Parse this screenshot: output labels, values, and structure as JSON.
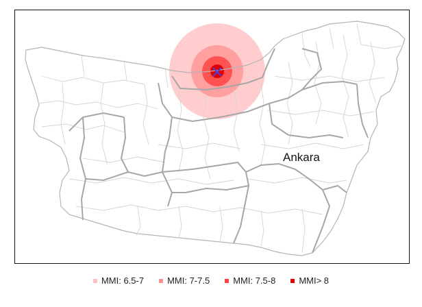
{
  "map": {
    "city_label": "Ankara",
    "colors": {
      "district_border": "#d0d0d0",
      "province_border": "#a8a8a8",
      "coast": "#b0b0b0",
      "epicenter": "#4444dd"
    }
  },
  "legend": {
    "items": [
      {
        "label": "MMI: 6.5-7",
        "color": "#ffc0c0"
      },
      {
        "label": "MMI: 7-7.5",
        "color": "#ff9090"
      },
      {
        "label": "MMI: 7.5-8",
        "color": "#ff4040"
      },
      {
        "label": "MMI> 8",
        "color": "#e00000"
      }
    ]
  }
}
